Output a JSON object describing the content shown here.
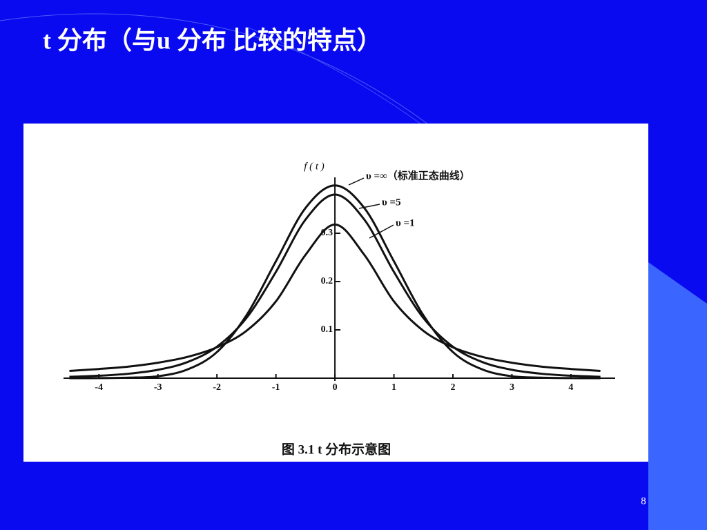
{
  "slide_title": "t 分布（与u 分布 比较的特点）",
  "page_number": "8",
  "chart_data": {
    "type": "line",
    "ylabel": "f ( t )",
    "caption": "图 3.1    t 分布示意图",
    "x": [
      -4.5,
      -4,
      -3.5,
      -3,
      -2.5,
      -2,
      -1.5,
      -1,
      -0.5,
      0,
      0.5,
      1,
      1.5,
      2,
      2.5,
      3,
      3.5,
      4,
      4.5
    ],
    "series": [
      {
        "name": "υ =∞（标准正态曲线）",
        "color": "#111111",
        "values": [
          0,
          0.0001,
          0.001,
          0.004,
          0.018,
          0.054,
          0.13,
          0.242,
          0.352,
          0.399,
          0.352,
          0.242,
          0.13,
          0.054,
          0.018,
          0.004,
          0.001,
          0.0001,
          0
        ]
      },
      {
        "name": "υ =5",
        "color": "#111111",
        "values": [
          0.0029,
          0.0051,
          0.0092,
          0.0173,
          0.0333,
          0.0651,
          0.1245,
          0.22,
          0.328,
          0.38,
          0.328,
          0.22,
          0.1245,
          0.0651,
          0.0333,
          0.0173,
          0.0092,
          0.0051,
          0.0029
        ]
      },
      {
        "name": "υ =1",
        "color": "#111111",
        "values": [
          0.015,
          0.019,
          0.024,
          0.032,
          0.044,
          0.064,
          0.098,
          0.159,
          0.255,
          0.318,
          0.255,
          0.159,
          0.098,
          0.064,
          0.044,
          0.032,
          0.024,
          0.019,
          0.015
        ]
      }
    ],
    "xlim": [
      -4.6,
      4.75
    ],
    "ylim": [
      0,
      0.41
    ],
    "xticks": [
      -4,
      -3,
      -2,
      -1,
      0,
      1,
      2,
      3,
      4
    ],
    "yticks": [
      0.1,
      0.2,
      0.3
    ]
  }
}
